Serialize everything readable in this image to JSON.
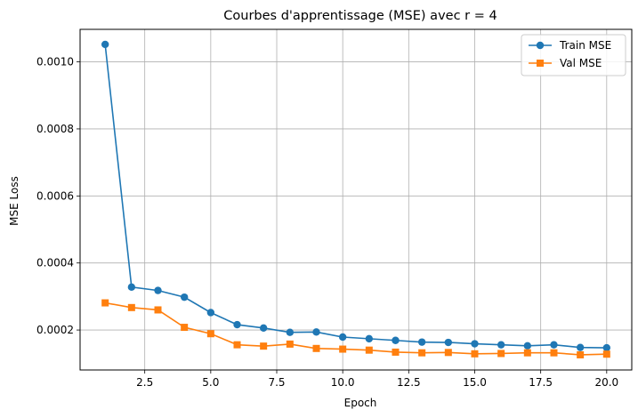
{
  "chart_data": {
    "type": "line",
    "title": "Courbes d'apprentissage (MSE) avec r = 4",
    "xlabel": "Epoch",
    "ylabel": "MSE Loss",
    "xlim": [
      0.05,
      20.95
    ],
    "ylim": [
      8.08e-05,
      0.001097
    ],
    "x_ticks": [
      2.5,
      5.0,
      7.5,
      10.0,
      12.5,
      15.0,
      17.5,
      20.0
    ],
    "x_tick_labels": [
      "2.5",
      "5.0",
      "7.5",
      "10.0",
      "12.5",
      "15.0",
      "17.5",
      "20.0"
    ],
    "y_ticks": [
      0.0002,
      0.0004,
      0.0006,
      0.0008,
      0.001
    ],
    "y_tick_labels": [
      "0.0002",
      "0.0004",
      "0.0006",
      "0.0008",
      "0.0010"
    ],
    "grid": true,
    "legend_position": "top-right",
    "x": [
      1,
      2,
      3,
      4,
      5,
      6,
      7,
      8,
      9,
      10,
      11,
      12,
      13,
      14,
      15,
      16,
      17,
      18,
      19,
      20
    ],
    "series": [
      {
        "name": "Train MSE",
        "color": "#1f77b4",
        "marker": "circle",
        "values": [
          0.001052,
          0.000328,
          0.000318,
          0.000298,
          0.000252,
          0.000216,
          0.000206,
          0.000193,
          0.000194,
          0.000179,
          0.000174,
          0.000169,
          0.000164,
          0.000163,
          0.000159,
          0.000156,
          0.000153,
          0.000156,
          0.000148,
          0.000147
        ]
      },
      {
        "name": "Val MSE",
        "color": "#ff7f0e",
        "marker": "square",
        "values": [
          0.000281,
          0.000267,
          0.00026,
          0.000208,
          0.000189,
          0.000156,
          0.000152,
          0.000158,
          0.000145,
          0.000143,
          0.00014,
          0.000134,
          0.000132,
          0.000133,
          0.000129,
          0.00013,
          0.000132,
          0.000132,
          0.000126,
          0.000128
        ]
      }
    ]
  }
}
